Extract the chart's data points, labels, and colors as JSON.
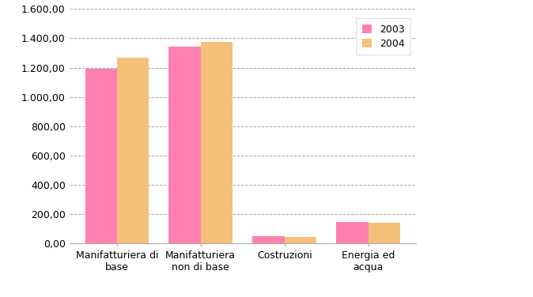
{
  "categories": [
    "Manifatturiera di\nbase",
    "Manifatturiera\nnon di base",
    "Costruzioni",
    "Energia ed\nacqua"
  ],
  "values_2003": [
    1190,
    1345,
    50,
    145
  ],
  "values_2004": [
    1270,
    1375,
    47,
    143
  ],
  "color_2003": "#FF80B0",
  "color_2004": "#F5C07A",
  "legend_labels": [
    "2003",
    "2004"
  ],
  "ylim": [
    0,
    1600
  ],
  "yticks": [
    0,
    200,
    400,
    600,
    800,
    1000,
    1200,
    1400,
    1600
  ],
  "bar_width": 0.38,
  "grid_color": "#aaaaaa",
  "background_color": "#ffffff",
  "tick_fontsize": 9,
  "legend_fontsize": 9
}
